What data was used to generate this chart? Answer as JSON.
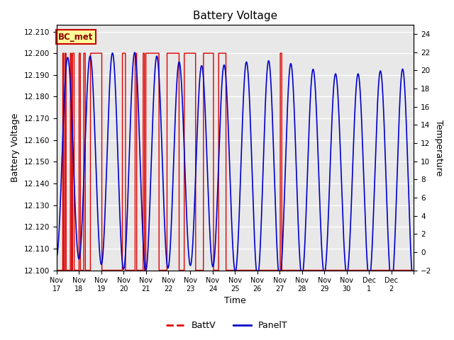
{
  "title": "Battery Voltage",
  "ylabel_left": "Battery Voltage",
  "ylabel_right": "Temperature",
  "xlabel": "Time",
  "annotation_text": "BC_met",
  "annotation_bg": "#ffff99",
  "annotation_edge": "#cc0000",
  "batt_color": "#dd0000",
  "panel_color": "#0000cc",
  "background_color": "#e8e8e8",
  "ylim_left": [
    12.1,
    12.213
  ],
  "ylim_right": [
    -2,
    25
  ],
  "yticks_left": [
    12.1,
    12.11,
    12.12,
    12.13,
    12.14,
    12.15,
    12.16,
    12.17,
    12.18,
    12.19,
    12.2,
    12.21
  ],
  "yticks_right": [
    -2,
    0,
    2,
    4,
    6,
    8,
    10,
    12,
    14,
    16,
    18,
    20,
    22,
    24
  ],
  "xtick_positions": [
    0,
    1,
    2,
    3,
    4,
    5,
    6,
    7,
    8,
    9,
    10,
    11,
    12,
    13,
    14,
    15,
    16
  ],
  "xtick_labels": [
    "Nov 17",
    "Nov 18",
    "Nov 19",
    "Nov 20",
    "Nov 21",
    "Nov 22",
    "Nov 23",
    "Nov 24",
    "Nov 25",
    "Nov 26",
    "Nov 27",
    "Nov 28",
    "Nov 29",
    "Nov 30",
    "Dec 1",
    "Dec 2",
    ""
  ],
  "legend_labels": [
    "BattV",
    "PanelT"
  ],
  "x_num_days": 16,
  "charge_windows": [
    [
      0.28,
      0.32
    ],
    [
      0.38,
      0.43
    ],
    [
      0.62,
      0.67
    ],
    [
      0.72,
      0.79
    ],
    [
      1.01,
      1.07
    ],
    [
      1.22,
      1.29
    ],
    [
      1.52,
      2.03
    ],
    [
      2.95,
      3.09
    ],
    [
      3.52,
      3.59
    ],
    [
      3.88,
      3.94
    ],
    [
      4.0,
      4.59
    ],
    [
      4.95,
      5.49
    ],
    [
      5.72,
      6.23
    ],
    [
      6.58,
      7.03
    ],
    [
      7.26,
      7.59
    ],
    [
      10.02,
      10.09
    ]
  ]
}
